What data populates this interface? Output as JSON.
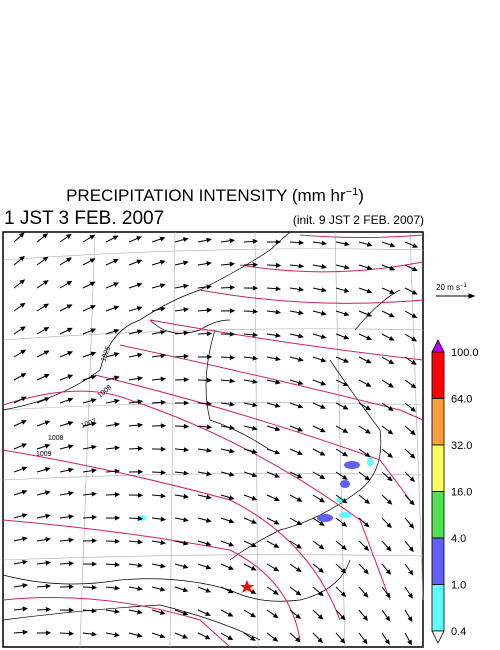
{
  "header": {
    "title": "PRECIPITATION INTENSITY (mm hr",
    "title_sup": "−1",
    "title_end": ")",
    "valid_time": "1 JST 3 FEB. 2007",
    "init_time": "(init. 9 JST 2 FEB. 2007)"
  },
  "vector_scale": {
    "label": "20 m s",
    "label_sup": "−1"
  },
  "colorbar": {
    "labels": [
      "100.0",
      "64.0",
      "32.0",
      "16.0",
      "4.0",
      "1.0",
      "0.4"
    ],
    "colors": [
      "#c000ff",
      "#ff0000",
      "#ff9f40",
      "#ffff60",
      "#50e050",
      "#6060ff",
      "#60ffff",
      "#ffffff"
    ]
  },
  "isobar_labels": [
    "1025",
    "1008",
    "1007",
    "1008",
    "1009"
  ]
}
